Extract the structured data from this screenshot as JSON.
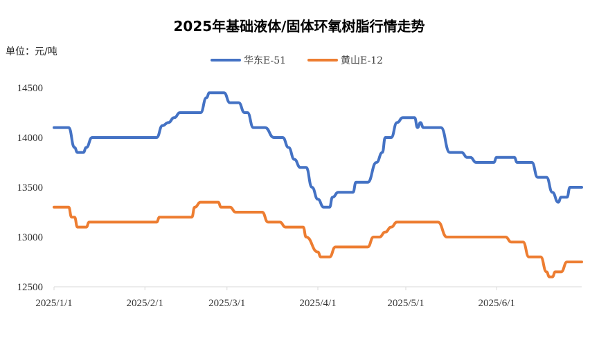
{
  "chart_data": {
    "type": "line",
    "title": "2025年基础液体/固体环氧树脂行情走势",
    "unit_label": "单位：元/吨",
    "ylim": [
      12500,
      14500
    ],
    "yticks": [
      "14500",
      "14000",
      "13500",
      "13000",
      "12500"
    ],
    "xlim": [
      "2025-01-01",
      "2025-06-30"
    ],
    "xticks": [
      {
        "label": "2025/1/1",
        "date": "2025-01-01"
      },
      {
        "label": "2025/2/1",
        "date": "2025-02-01"
      },
      {
        "label": "2025/3/1",
        "date": "2025-03-01"
      },
      {
        "label": "2025/4/1",
        "date": "2025-04-01"
      },
      {
        "label": "2025/5/1",
        "date": "2025-05-01"
      },
      {
        "label": "2025/6/1",
        "date": "2025-06-01"
      }
    ],
    "grid": false,
    "legend": "top-center",
    "series": [
      {
        "name": "华东E-51",
        "color": "#4472C4",
        "points": [
          [
            "2025-01-01",
            14100
          ],
          [
            "2025-01-06",
            14100
          ],
          [
            "2025-01-08",
            13900
          ],
          [
            "2025-01-09",
            13850
          ],
          [
            "2025-01-11",
            13850
          ],
          [
            "2025-01-12",
            13900
          ],
          [
            "2025-01-14",
            14000
          ],
          [
            "2025-02-05",
            14000
          ],
          [
            "2025-02-07",
            14120
          ],
          [
            "2025-02-09",
            14150
          ],
          [
            "2025-02-11",
            14200
          ],
          [
            "2025-02-13",
            14250
          ],
          [
            "2025-02-20",
            14250
          ],
          [
            "2025-02-22",
            14400
          ],
          [
            "2025-02-23",
            14450
          ],
          [
            "2025-02-28",
            14450
          ],
          [
            "2025-03-02",
            14350
          ],
          [
            "2025-03-05",
            14350
          ],
          [
            "2025-03-07",
            14250
          ],
          [
            "2025-03-08",
            14250
          ],
          [
            "2025-03-10",
            14100
          ],
          [
            "2025-03-14",
            14100
          ],
          [
            "2025-03-17",
            14000
          ],
          [
            "2025-03-20",
            14000
          ],
          [
            "2025-03-22",
            13900
          ],
          [
            "2025-03-24",
            13780
          ],
          [
            "2025-03-26",
            13700
          ],
          [
            "2025-03-28",
            13700
          ],
          [
            "2025-03-30",
            13500
          ],
          [
            "2025-04-01",
            13380
          ],
          [
            "2025-04-03",
            13300
          ],
          [
            "2025-04-05",
            13300
          ],
          [
            "2025-04-06",
            13400
          ],
          [
            "2025-04-08",
            13450
          ],
          [
            "2025-04-13",
            13450
          ],
          [
            "2025-04-14",
            13550
          ],
          [
            "2025-04-18",
            13550
          ],
          [
            "2025-04-21",
            13750
          ],
          [
            "2025-04-23",
            13850
          ],
          [
            "2025-04-24",
            14000
          ],
          [
            "2025-04-26",
            14000
          ],
          [
            "2025-04-28",
            14150
          ],
          [
            "2025-04-30",
            14200
          ],
          [
            "2025-05-04",
            14200
          ],
          [
            "2025-05-05",
            14100
          ],
          [
            "2025-05-06",
            14150
          ],
          [
            "2025-05-07",
            14100
          ],
          [
            "2025-05-13",
            14100
          ],
          [
            "2025-05-16",
            13850
          ],
          [
            "2025-05-20",
            13850
          ],
          [
            "2025-05-22",
            13800
          ],
          [
            "2025-05-23",
            13800
          ],
          [
            "2025-05-25",
            13750
          ],
          [
            "2025-05-31",
            13750
          ],
          [
            "2025-06-01",
            13800
          ],
          [
            "2025-06-07",
            13800
          ],
          [
            "2025-06-08",
            13750
          ],
          [
            "2025-06-13",
            13750
          ],
          [
            "2025-06-15",
            13600
          ],
          [
            "2025-06-18",
            13600
          ],
          [
            "2025-06-20",
            13450
          ],
          [
            "2025-06-22",
            13350
          ],
          [
            "2025-06-23",
            13400
          ],
          [
            "2025-06-25",
            13400
          ],
          [
            "2025-06-26",
            13500
          ],
          [
            "2025-06-30",
            13500
          ]
        ]
      },
      {
        "name": "黄山E-12",
        "color": "#ED7D31",
        "points": [
          [
            "2025-01-01",
            13300
          ],
          [
            "2025-01-06",
            13300
          ],
          [
            "2025-01-07",
            13200
          ],
          [
            "2025-01-08",
            13200
          ],
          [
            "2025-01-09",
            13100
          ],
          [
            "2025-01-12",
            13100
          ],
          [
            "2025-01-13",
            13150
          ],
          [
            "2025-02-05",
            13150
          ],
          [
            "2025-02-06",
            13200
          ],
          [
            "2025-02-17",
            13200
          ],
          [
            "2025-02-18",
            13300
          ],
          [
            "2025-02-20",
            13350
          ],
          [
            "2025-02-26",
            13350
          ],
          [
            "2025-02-27",
            13300
          ],
          [
            "2025-03-02",
            13300
          ],
          [
            "2025-03-04",
            13250
          ],
          [
            "2025-03-13",
            13250
          ],
          [
            "2025-03-15",
            13150
          ],
          [
            "2025-03-19",
            13150
          ],
          [
            "2025-03-21",
            13100
          ],
          [
            "2025-03-27",
            13100
          ],
          [
            "2025-03-28",
            13000
          ],
          [
            "2025-04-01",
            12850
          ],
          [
            "2025-04-02",
            12800
          ],
          [
            "2025-04-05",
            12800
          ],
          [
            "2025-04-07",
            12900
          ],
          [
            "2025-04-18",
            12900
          ],
          [
            "2025-04-20",
            13000
          ],
          [
            "2025-04-22",
            13000
          ],
          [
            "2025-04-24",
            13050
          ],
          [
            "2025-04-26",
            13100
          ],
          [
            "2025-04-28",
            13150
          ],
          [
            "2025-05-12",
            13150
          ],
          [
            "2025-05-15",
            13000
          ],
          [
            "2025-06-04",
            13000
          ],
          [
            "2025-06-06",
            12950
          ],
          [
            "2025-06-10",
            12950
          ],
          [
            "2025-06-12",
            12800
          ],
          [
            "2025-06-16",
            12800
          ],
          [
            "2025-06-18",
            12650
          ],
          [
            "2025-06-19",
            12600
          ],
          [
            "2025-06-20",
            12600
          ],
          [
            "2025-06-21",
            12650
          ],
          [
            "2025-06-23",
            12650
          ],
          [
            "2025-06-25",
            12750
          ],
          [
            "2025-06-30",
            12750
          ]
        ]
      }
    ]
  }
}
